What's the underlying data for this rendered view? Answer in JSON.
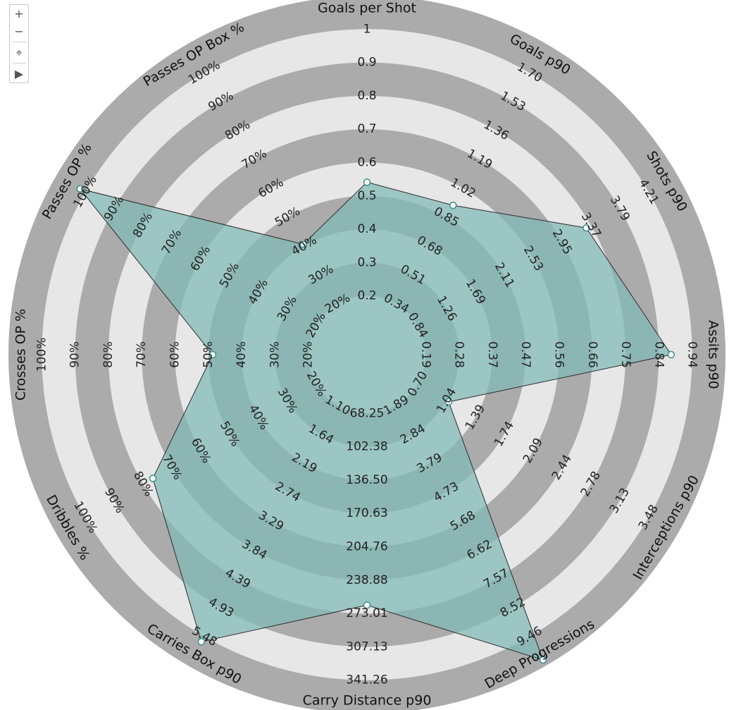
{
  "toolbar": {
    "zoom_in": "+",
    "zoom_out": "−",
    "reset": "⌖",
    "more": "▶"
  },
  "chart_data": {
    "type": "radar",
    "title": "",
    "ring_colors": [
      "#ababab",
      "#e7e7e7"
    ],
    "fill_color": "#7fbab6",
    "axes": [
      {
        "label": "Goals per Shot",
        "ticks": [
          "0.2",
          "0.3",
          "0.4",
          "0.5",
          "0.6",
          "0.7",
          "0.8",
          "0.9",
          "1"
        ],
        "value_fraction": 0.49
      },
      {
        "label": "Goals p90",
        "ticks": [
          "0.34",
          "0.51",
          "0.68",
          "0.85",
          "1.02",
          "1.19",
          "1.36",
          "1.53",
          "1.70"
        ],
        "value_fraction": 0.49
      },
      {
        "label": "Shots p90",
        "ticks": [
          "0.84",
          "1.26",
          "1.69",
          "2.11",
          "2.53",
          "2.95",
          "3.37",
          "3.79",
          "4.21"
        ],
        "value_fraction": 0.76
      },
      {
        "label": "Assits p90",
        "ticks": [
          "0.19",
          "0.28",
          "0.37",
          "0.47",
          "0.56",
          "0.66",
          "0.75",
          "0.84",
          "0.94"
        ],
        "value_fraction": 0.93
      },
      {
        "label": "Interceptions p90",
        "ticks": [
          "0.70",
          "1.04",
          "1.39",
          "1.74",
          "2.09",
          "2.44",
          "2.78",
          "3.13",
          "3.48"
        ],
        "value_fraction": 0.23
      },
      {
        "label": "Deep Progressions",
        "ticks": [
          "1.89",
          "2.84",
          "3.79",
          "4.73",
          "5.68",
          "6.62",
          "7.57",
          "8.52",
          "9.46"
        ],
        "value_fraction": 1.09
      },
      {
        "label": "Carry Distance p90",
        "ticks": [
          "68.25",
          "102.38",
          "136.50",
          "170.63",
          "204.76",
          "238.88",
          "273.01",
          "307.13",
          "341.26"
        ],
        "value_fraction": 0.75
      },
      {
        "label": "Carries Box p90",
        "ticks": [
          "1.10",
          "1.64",
          "2.19",
          "2.74",
          "3.29",
          "3.84",
          "4.39",
          "4.93",
          "5.48"
        ],
        "value_fraction": 1.02
      },
      {
        "label": "Dribbles %",
        "ticks": [
          "20%",
          "30%",
          "40%",
          "50%",
          "60%",
          "70%",
          "80%",
          "90%",
          "100%"
        ],
        "value_fraction": 0.74
      },
      {
        "label": "Crosses OP %",
        "ticks": [
          "20%",
          "30%",
          "40%",
          "50%",
          "60%",
          "70%",
          "80%",
          "90%",
          "100%"
        ],
        "value_fraction": 0.43
      },
      {
        "label": "Passes OP %",
        "ticks": [
          "20%",
          "30%",
          "40%",
          "50%",
          "60%",
          "70%",
          "80%",
          "90%",
          "100%"
        ],
        "value_fraction": 1.02
      },
      {
        "label": "Passes OP Box %",
        "ticks": [
          "20%",
          "30%",
          "40%",
          "50%",
          "60%",
          "70%",
          "80%",
          "90%",
          "100%"
        ],
        "value_fraction": 0.34
      }
    ]
  }
}
